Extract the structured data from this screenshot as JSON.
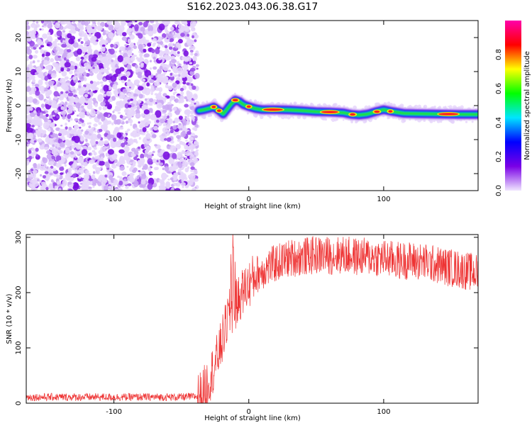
{
  "title": "S162.2023.043.06.38.G17",
  "chart_data": [
    {
      "type": "heatmap",
      "xlabel": "Height of straight line (km)",
      "ylabel": "Frequency (Hz)",
      "xlim": [
        -165,
        170
      ],
      "ylim": [
        -25,
        25
      ],
      "xticks": [
        {
          "value": -100,
          "label": "-100"
        },
        {
          "value": 0,
          "label": "0"
        },
        {
          "value": 100,
          "label": "100"
        }
      ],
      "yticks": [
        {
          "value": -20,
          "label": "-20"
        },
        {
          "value": -10,
          "label": "-10"
        },
        {
          "value": 0,
          "label": "0"
        },
        {
          "value": 10,
          "label": "10"
        },
        {
          "value": 20,
          "label": "20"
        }
      ],
      "noise_region_x": [
        -165,
        -38
      ],
      "ridge": [
        {
          "x": -37,
          "y": -1.5
        },
        {
          "x": -33,
          "y": -1.2
        },
        {
          "x": -29,
          "y": -0.8
        },
        {
          "x": -26,
          "y": -0.4
        },
        {
          "x": -22,
          "y": -1.5
        },
        {
          "x": -19,
          "y": -2.5
        },
        {
          "x": -16,
          "y": -1.0
        },
        {
          "x": -13,
          "y": 0.5
        },
        {
          "x": -10,
          "y": 1.6
        },
        {
          "x": -7,
          "y": 1.2
        },
        {
          "x": -4,
          "y": 0.3
        },
        {
          "x": 0,
          "y": -0.3
        },
        {
          "x": 5,
          "y": -0.9
        },
        {
          "x": 10,
          "y": -1.2
        },
        {
          "x": 20,
          "y": -1.2
        },
        {
          "x": 30,
          "y": -1.3
        },
        {
          "x": 40,
          "y": -1.5
        },
        {
          "x": 50,
          "y": -1.8
        },
        {
          "x": 60,
          "y": -1.9
        },
        {
          "x": 70,
          "y": -2.1
        },
        {
          "x": 76,
          "y": -2.6
        },
        {
          "x": 82,
          "y": -2.8
        },
        {
          "x": 88,
          "y": -2.5
        },
        {
          "x": 94,
          "y": -1.8
        },
        {
          "x": 100,
          "y": -1.2
        },
        {
          "x": 106,
          "y": -1.7
        },
        {
          "x": 115,
          "y": -2.3
        },
        {
          "x": 125,
          "y": -2.4
        },
        {
          "x": 140,
          "y": -2.5
        },
        {
          "x": 155,
          "y": -2.6
        },
        {
          "x": 170,
          "y": -2.6
        }
      ],
      "colorbar": {
        "label": "Normalized spectral amplitude",
        "range": [
          0,
          1
        ],
        "ticks": [
          {
            "value": 0,
            "label": "0.0"
          },
          {
            "value": 0.2,
            "label": "0.2"
          },
          {
            "value": 0.4,
            "label": "0.4"
          },
          {
            "value": 0.6,
            "label": "0.6"
          },
          {
            "value": 0.8,
            "label": "0.8"
          }
        ],
        "colors": [
          "#f0e6ff",
          "#7a00e6",
          "#0000ff",
          "#00e5ff",
          "#00ff00",
          "#ffff00",
          "#ff0000",
          "#ff00aa"
        ]
      }
    },
    {
      "type": "line",
      "xlabel": "Height of straight line (km)",
      "ylabel": "SNR (10 * v/v)",
      "xlim": [
        -165,
        170
      ],
      "ylim": [
        0,
        305
      ],
      "xticks": [
        {
          "value": -100,
          "label": "-100"
        },
        {
          "value": 0,
          "label": "0"
        },
        {
          "value": 100,
          "label": "100"
        }
      ],
      "yticks": [
        {
          "value": 0,
          "label": "0"
        },
        {
          "value": 100,
          "label": "100"
        },
        {
          "value": 200,
          "label": "200"
        },
        {
          "value": 300,
          "label": "300"
        }
      ],
      "color": "#ee3333",
      "series": [
        {
          "x": [
            -165,
            -150,
            -130,
            -110,
            -90,
            -70,
            -50,
            -40,
            -35,
            -30,
            -25,
            -20,
            -15,
            -10,
            -5,
            0,
            5,
            10,
            20,
            30,
            40,
            50,
            60,
            70,
            80,
            90,
            100,
            110,
            120,
            130,
            140,
            150,
            160,
            170
          ],
          "values": [
            11,
            11,
            11,
            11,
            11,
            11,
            11,
            12,
            14,
            40,
            70,
            110,
            160,
            175,
            200,
            215,
            232,
            240,
            253,
            262,
            265,
            268,
            267,
            268,
            265,
            265,
            262,
            258,
            258,
            255,
            250,
            245,
            240,
            235
          ]
        }
      ]
    }
  ]
}
